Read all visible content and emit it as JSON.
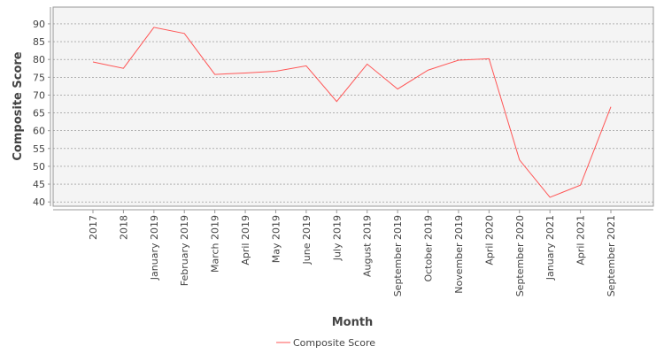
{
  "chart_data": {
    "type": "line",
    "x_label": "Month",
    "y_label": "Composite Score",
    "categories": [
      "2017",
      "2018",
      "January 2019",
      "February 2019",
      "March 2019",
      "April 2019",
      "May 2019",
      "June 2019",
      "July 2019",
      "August 2019",
      "September 2019",
      "October 2019",
      "November 2019",
      "April 2020",
      "September 2020",
      "January 2021",
      "April 2021",
      "September 2021"
    ],
    "series": [
      {
        "name": "Composite Score",
        "color": "#ff5555",
        "values": [
          79.3,
          77.5,
          89,
          87.3,
          75.8,
          76.2,
          76.7,
          78.2,
          68.2,
          78.7,
          71.7,
          77,
          79.8,
          80.2,
          51.8,
          41.3,
          44.7,
          66.7
        ]
      }
    ],
    "ylim": [
      38.8,
      94.7
    ],
    "yticks": [
      40,
      45,
      50,
      55,
      60,
      65,
      70,
      75,
      80,
      85,
      90
    ],
    "grid": true,
    "legend": "bottom"
  }
}
